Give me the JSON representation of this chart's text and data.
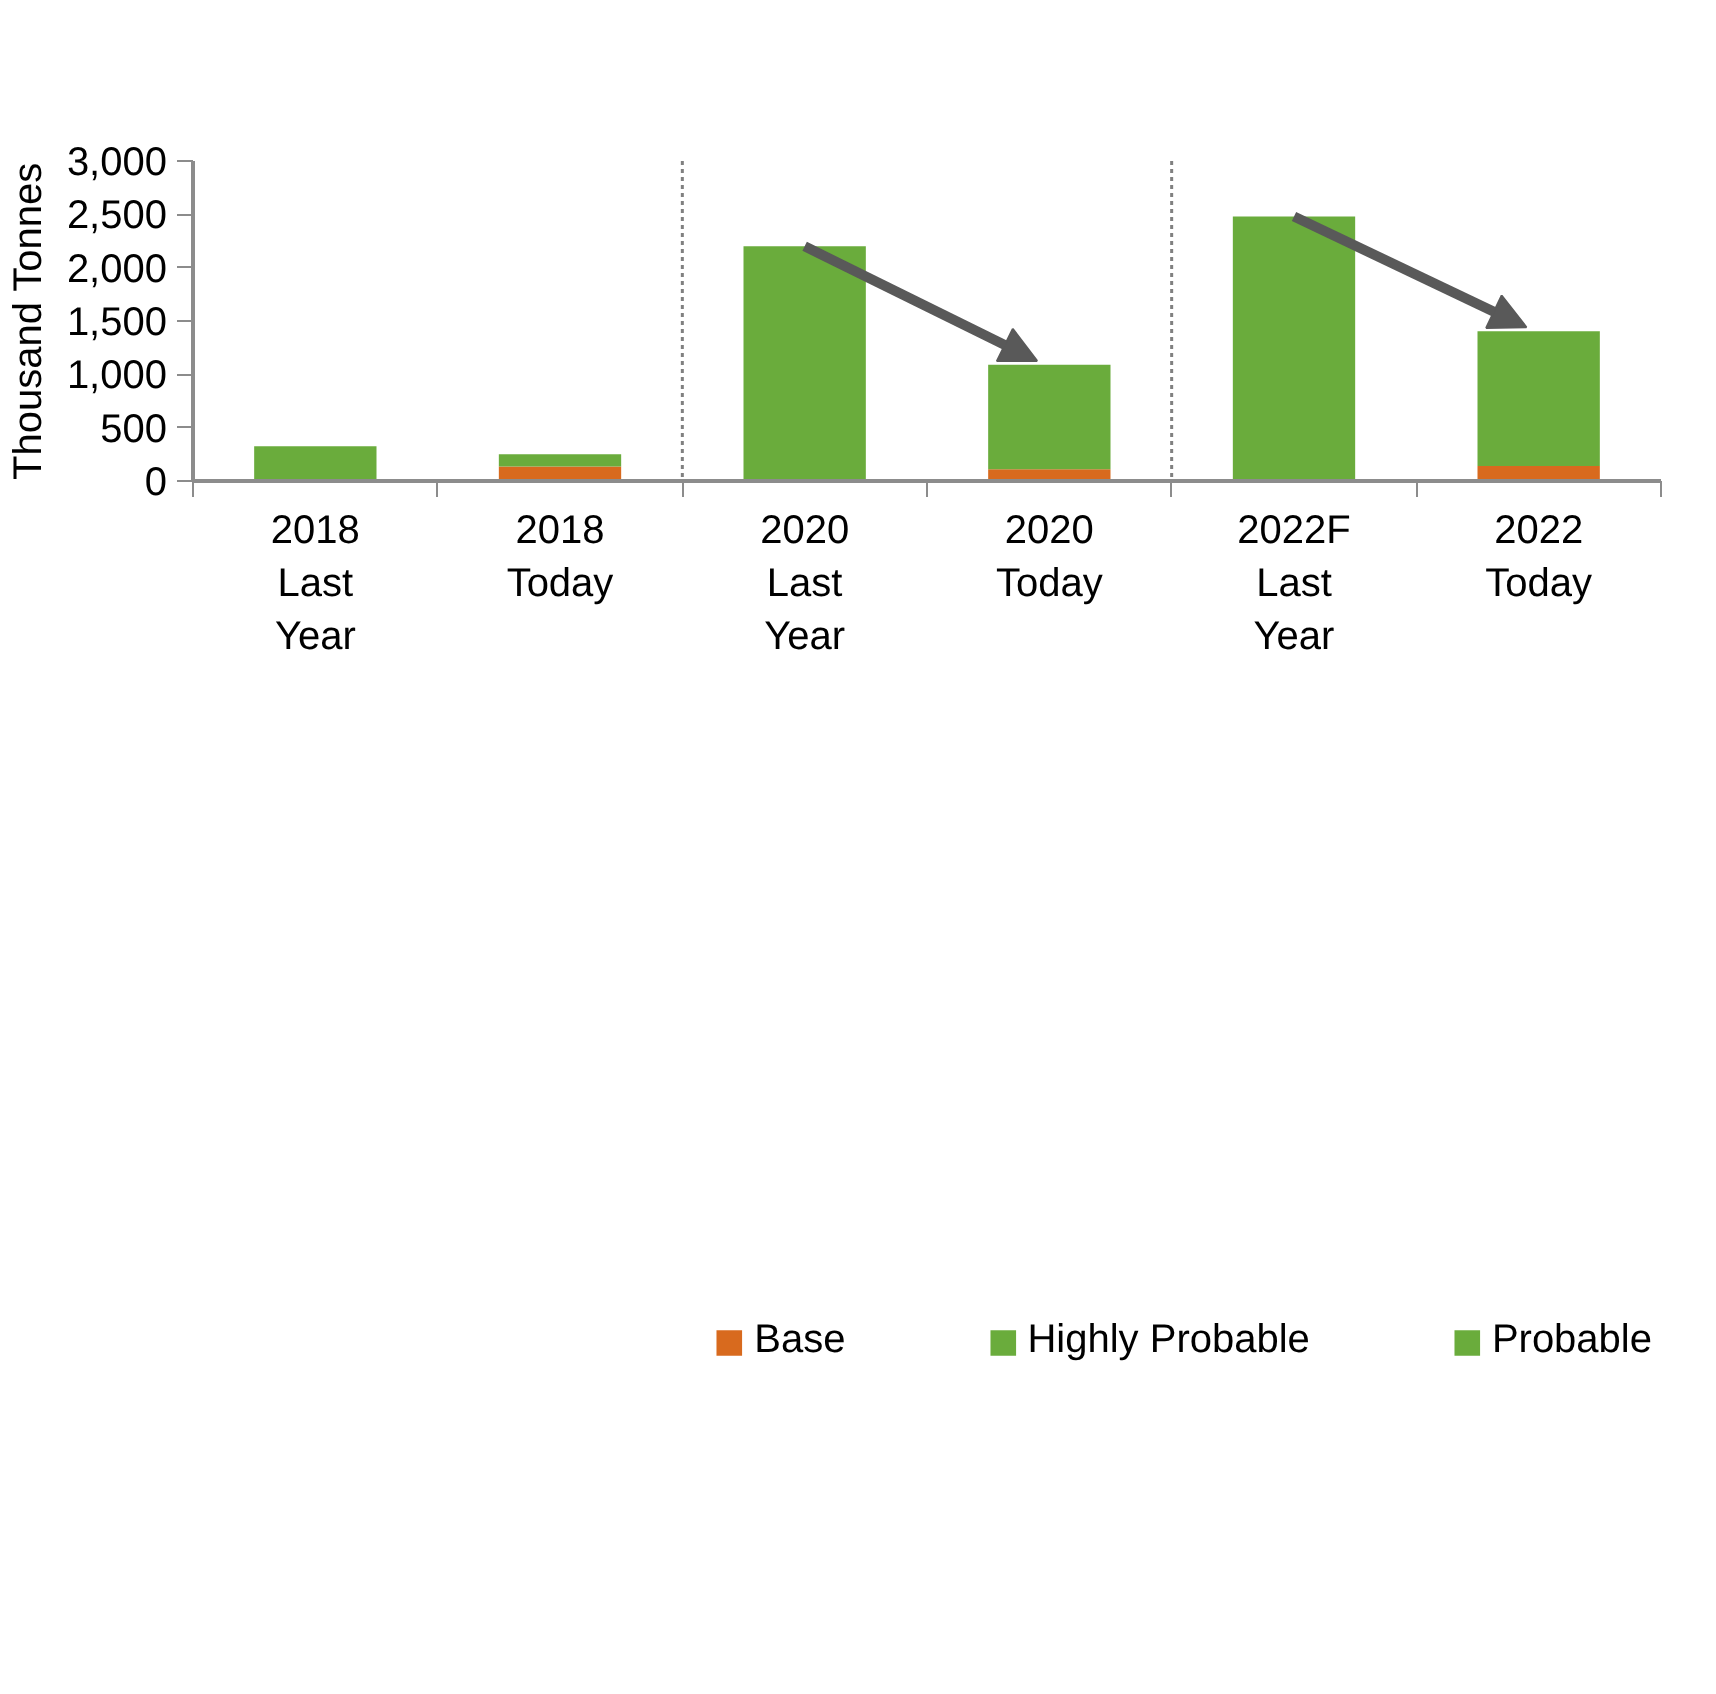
{
  "chart_data": {
    "type": "bar",
    "stacked": true,
    "ylabel": "Thousand Tonnes",
    "categories": [
      "2018\nLast\nYear",
      "2018\nToday",
      "2020\nLast\nYear",
      "2020\nToday",
      "2022F\nLast\nYear",
      "2022\nToday"
    ],
    "series": [
      {
        "name": "Base",
        "color": "#d86a1e",
        "values": [
          null,
          135,
          null,
          110,
          null,
          140
        ]
      },
      {
        "name": "Highly Probable",
        "color": "#6aac3c",
        "values": [
          325,
          115,
          2200,
          980,
          2480,
          1265
        ]
      },
      {
        "name": "Probable",
        "color": "#6aac3c",
        "values": [
          null,
          null,
          null,
          null,
          null,
          null
        ]
      }
    ],
    "ylim": [
      0,
      3000
    ],
    "yticks": [
      0,
      {
        "value": 500,
        "label": "500"
      },
      {
        "value": 1000,
        "label": "1,000"
      },
      {
        "value": 1500,
        "label": "1,500"
      },
      {
        "value": 2000,
        "label": "2,000"
      },
      {
        "value": 2500,
        "label": "2,500"
      },
      {
        "value": 3000,
        "label": "3,000"
      }
    ],
    "grid": false,
    "legend": "bottom"
  }
}
